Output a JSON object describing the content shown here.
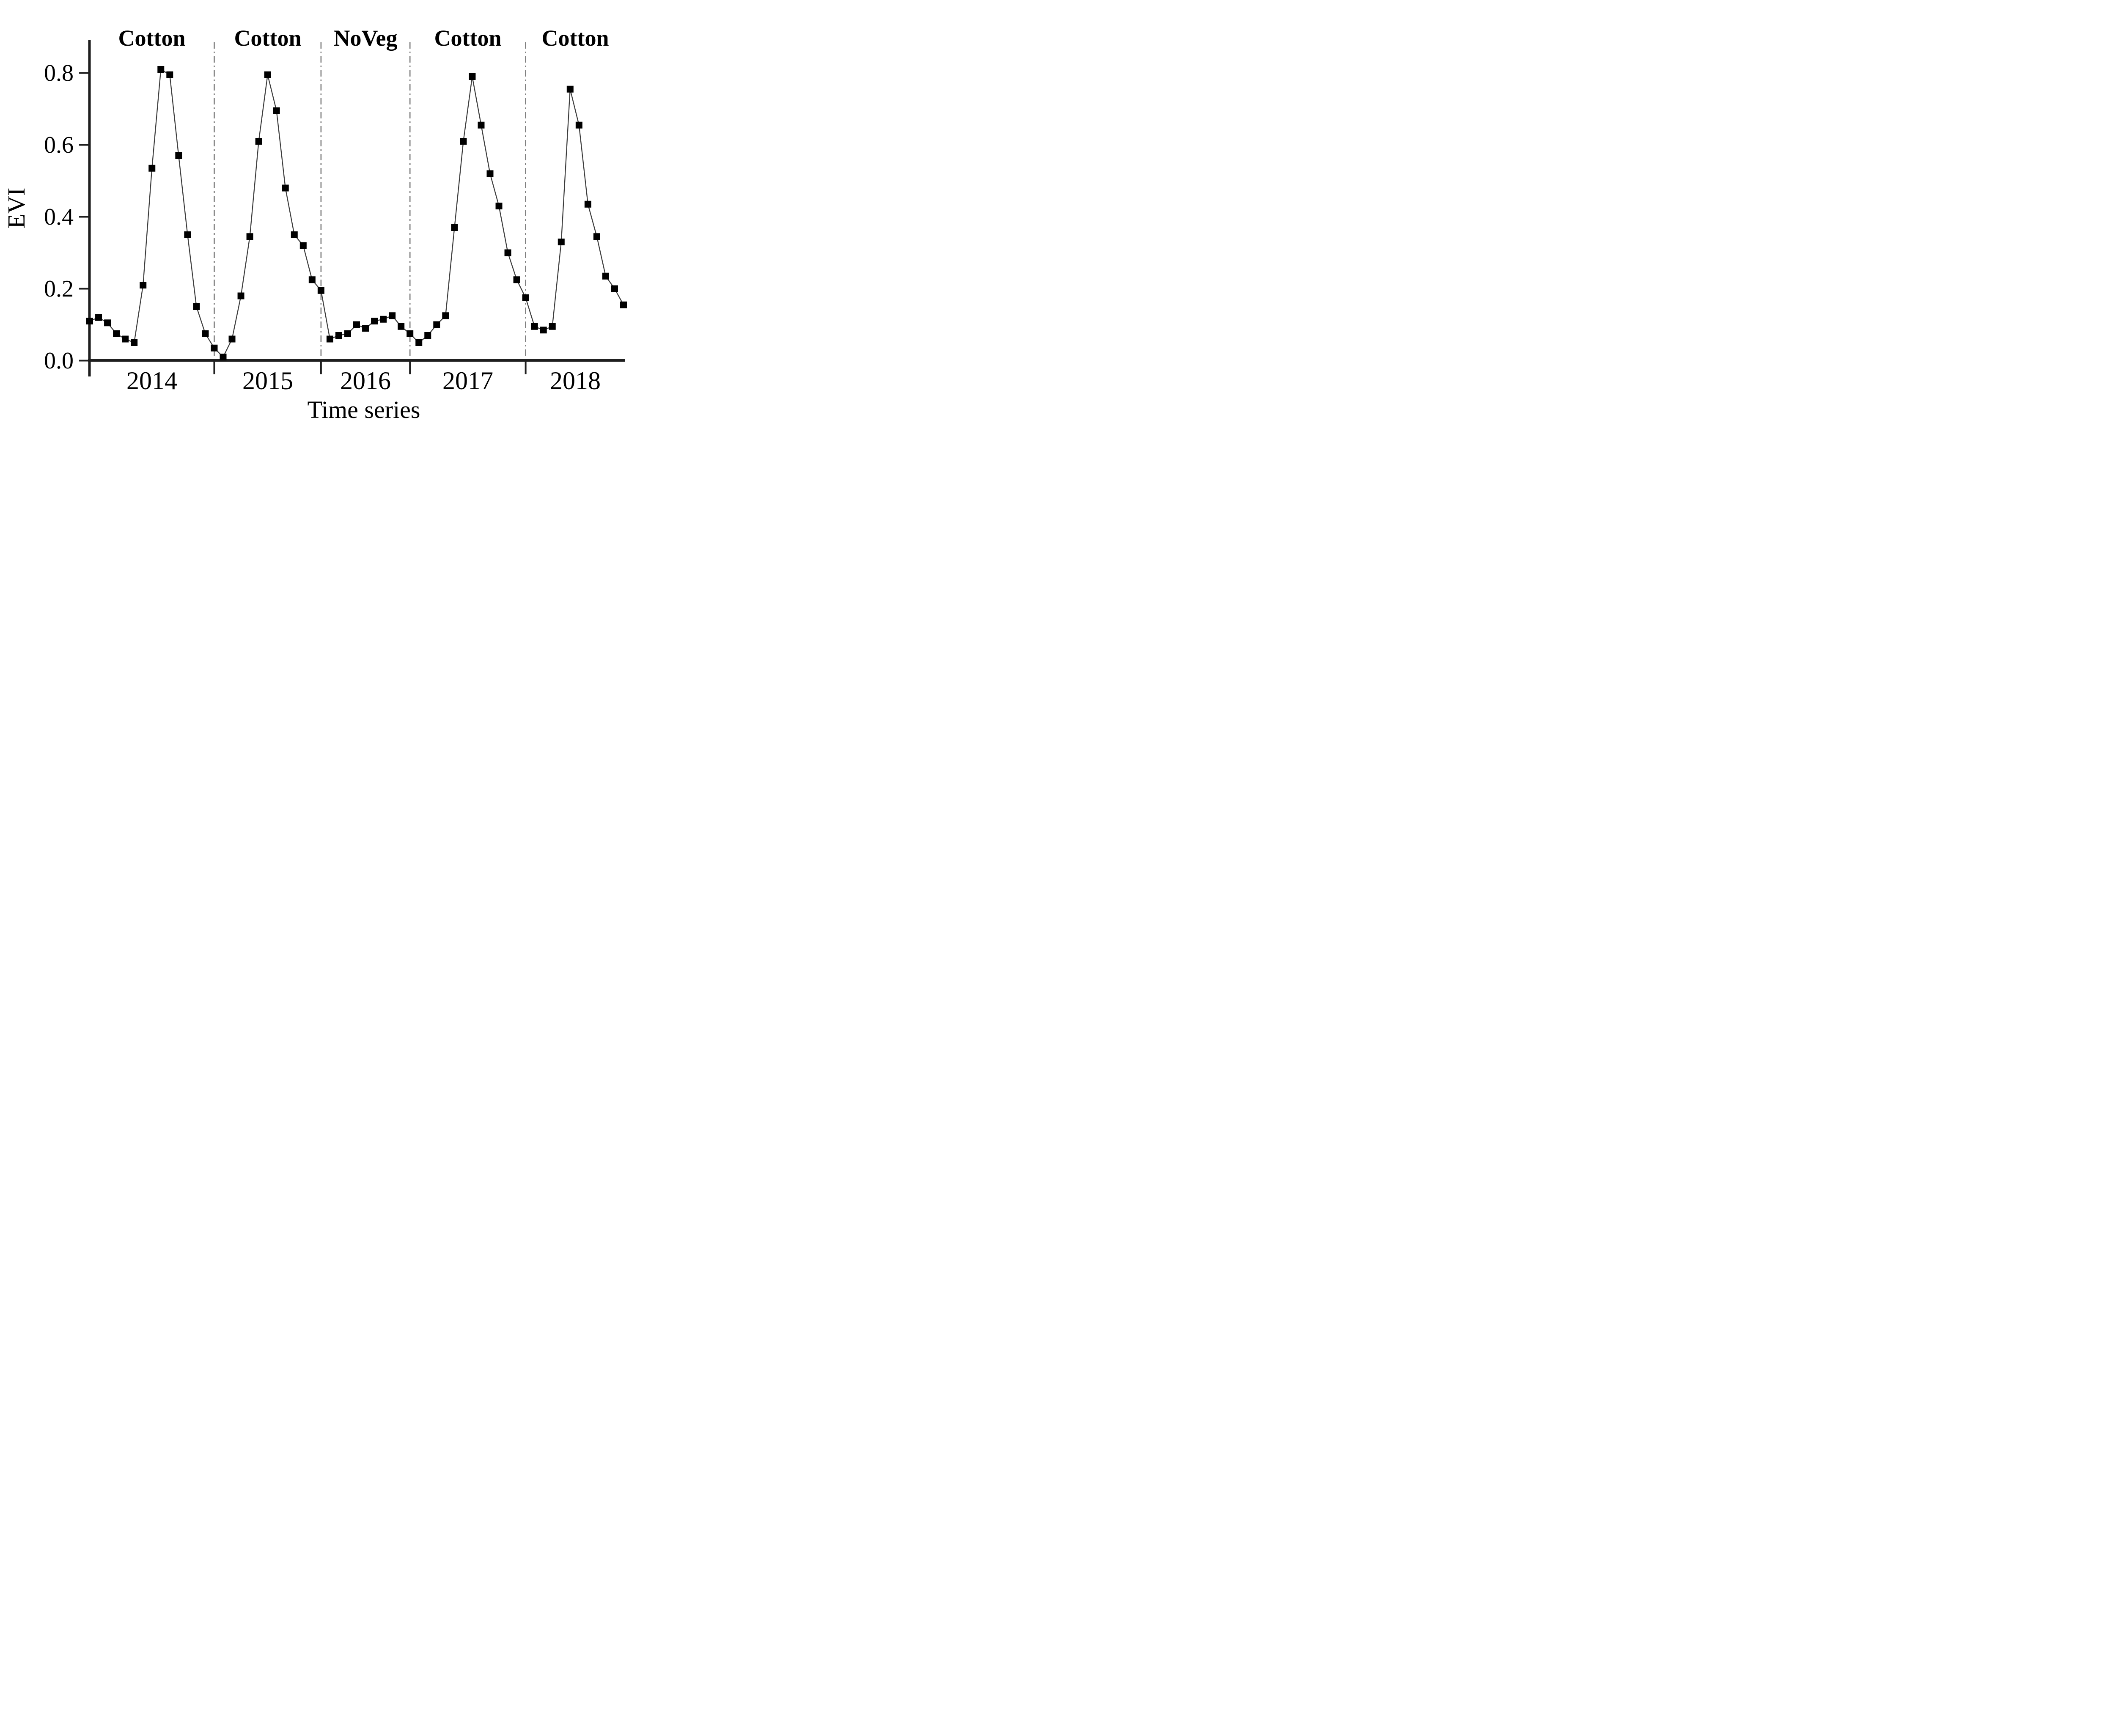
{
  "figure": {
    "kind": "scientific line chart",
    "background_color": "#ffffff"
  },
  "chart_data": {
    "type": "line",
    "title": "",
    "xlabel": "Time series",
    "ylabel": "EVI",
    "ylim": [
      0.0,
      0.9
    ],
    "yticks": [
      0.0,
      0.2,
      0.4,
      0.6,
      0.8
    ],
    "ytick_labels_top_to_bottom": [
      "0.8",
      "0.6",
      "0.4",
      "0.2",
      "0.0"
    ],
    "grid": false,
    "legend": "none",
    "marker": "black-square",
    "colors": {
      "marker": "#000000",
      "line": "#3c3c3c",
      "axis": "#1f1f1f",
      "separator": "#7a7a7a",
      "text": "#000000"
    },
    "years": [
      {
        "label": "2014",
        "period": "Cotton",
        "values": [
          0.11,
          0.12,
          0.105,
          0.075,
          0.06,
          0.05,
          0.21,
          0.535,
          0.81,
          0.795,
          0.57,
          0.35,
          0.15,
          0.075,
          0.035
        ]
      },
      {
        "label": "2015",
        "period": "Cotton",
        "values": [
          0.01,
          0.06,
          0.18,
          0.345,
          0.61,
          0.795,
          0.695,
          0.48,
          0.35,
          0.32,
          0.225,
          0.195
        ]
      },
      {
        "label": "2016",
        "period": "NoVeg",
        "values": [
          0.06,
          0.07,
          0.075,
          0.1,
          0.09,
          0.11,
          0.115,
          0.125,
          0.095
        ]
      },
      {
        "label": "2017",
        "period": "Cotton",
        "values": [
          0.075,
          0.05,
          0.07,
          0.1,
          0.125,
          0.37,
          0.61,
          0.79,
          0.655,
          0.52,
          0.43,
          0.3,
          0.225,
          0.175
        ]
      },
      {
        "label": "2018",
        "period": "Cotton",
        "values": [
          0.095,
          0.085,
          0.095,
          0.33,
          0.755,
          0.655,
          0.435,
          0.345,
          0.235,
          0.2,
          0.155
        ]
      }
    ],
    "separator_indices": [
      14,
      26,
      36,
      49
    ],
    "separator_style": "gray dash-dot vertical lines at season boundaries, black tick below axis"
  }
}
